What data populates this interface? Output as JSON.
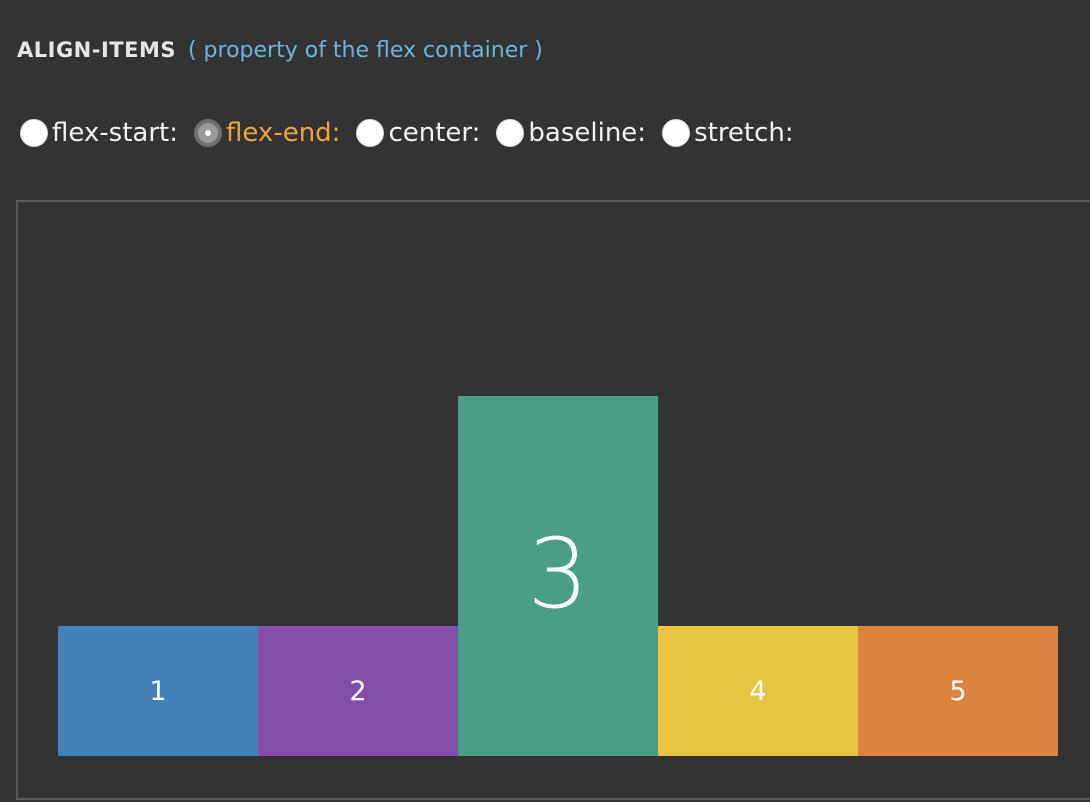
{
  "heading": {
    "title": "ALIGN-ITEMS",
    "subtitle": "( property of the flex container )"
  },
  "options": [
    {
      "label": "flex-start:",
      "checked": false
    },
    {
      "label": "flex-end:",
      "checked": true
    },
    {
      "label": "center:",
      "checked": false
    },
    {
      "label": "baseline:",
      "checked": false
    },
    {
      "label": "stretch:",
      "checked": false
    }
  ],
  "items": [
    {
      "label": "1",
      "color": "#4480b8"
    },
    {
      "label": "2",
      "color": "#844ea8"
    },
    {
      "label": "3",
      "color": "#4a9e88"
    },
    {
      "label": "4",
      "color": "#e8c443"
    },
    {
      "label": "5",
      "color": "#db833f"
    }
  ],
  "colors": {
    "background": "#333333",
    "accent_selected": "#f0a23a",
    "subtitle": "#6fb3d9"
  }
}
